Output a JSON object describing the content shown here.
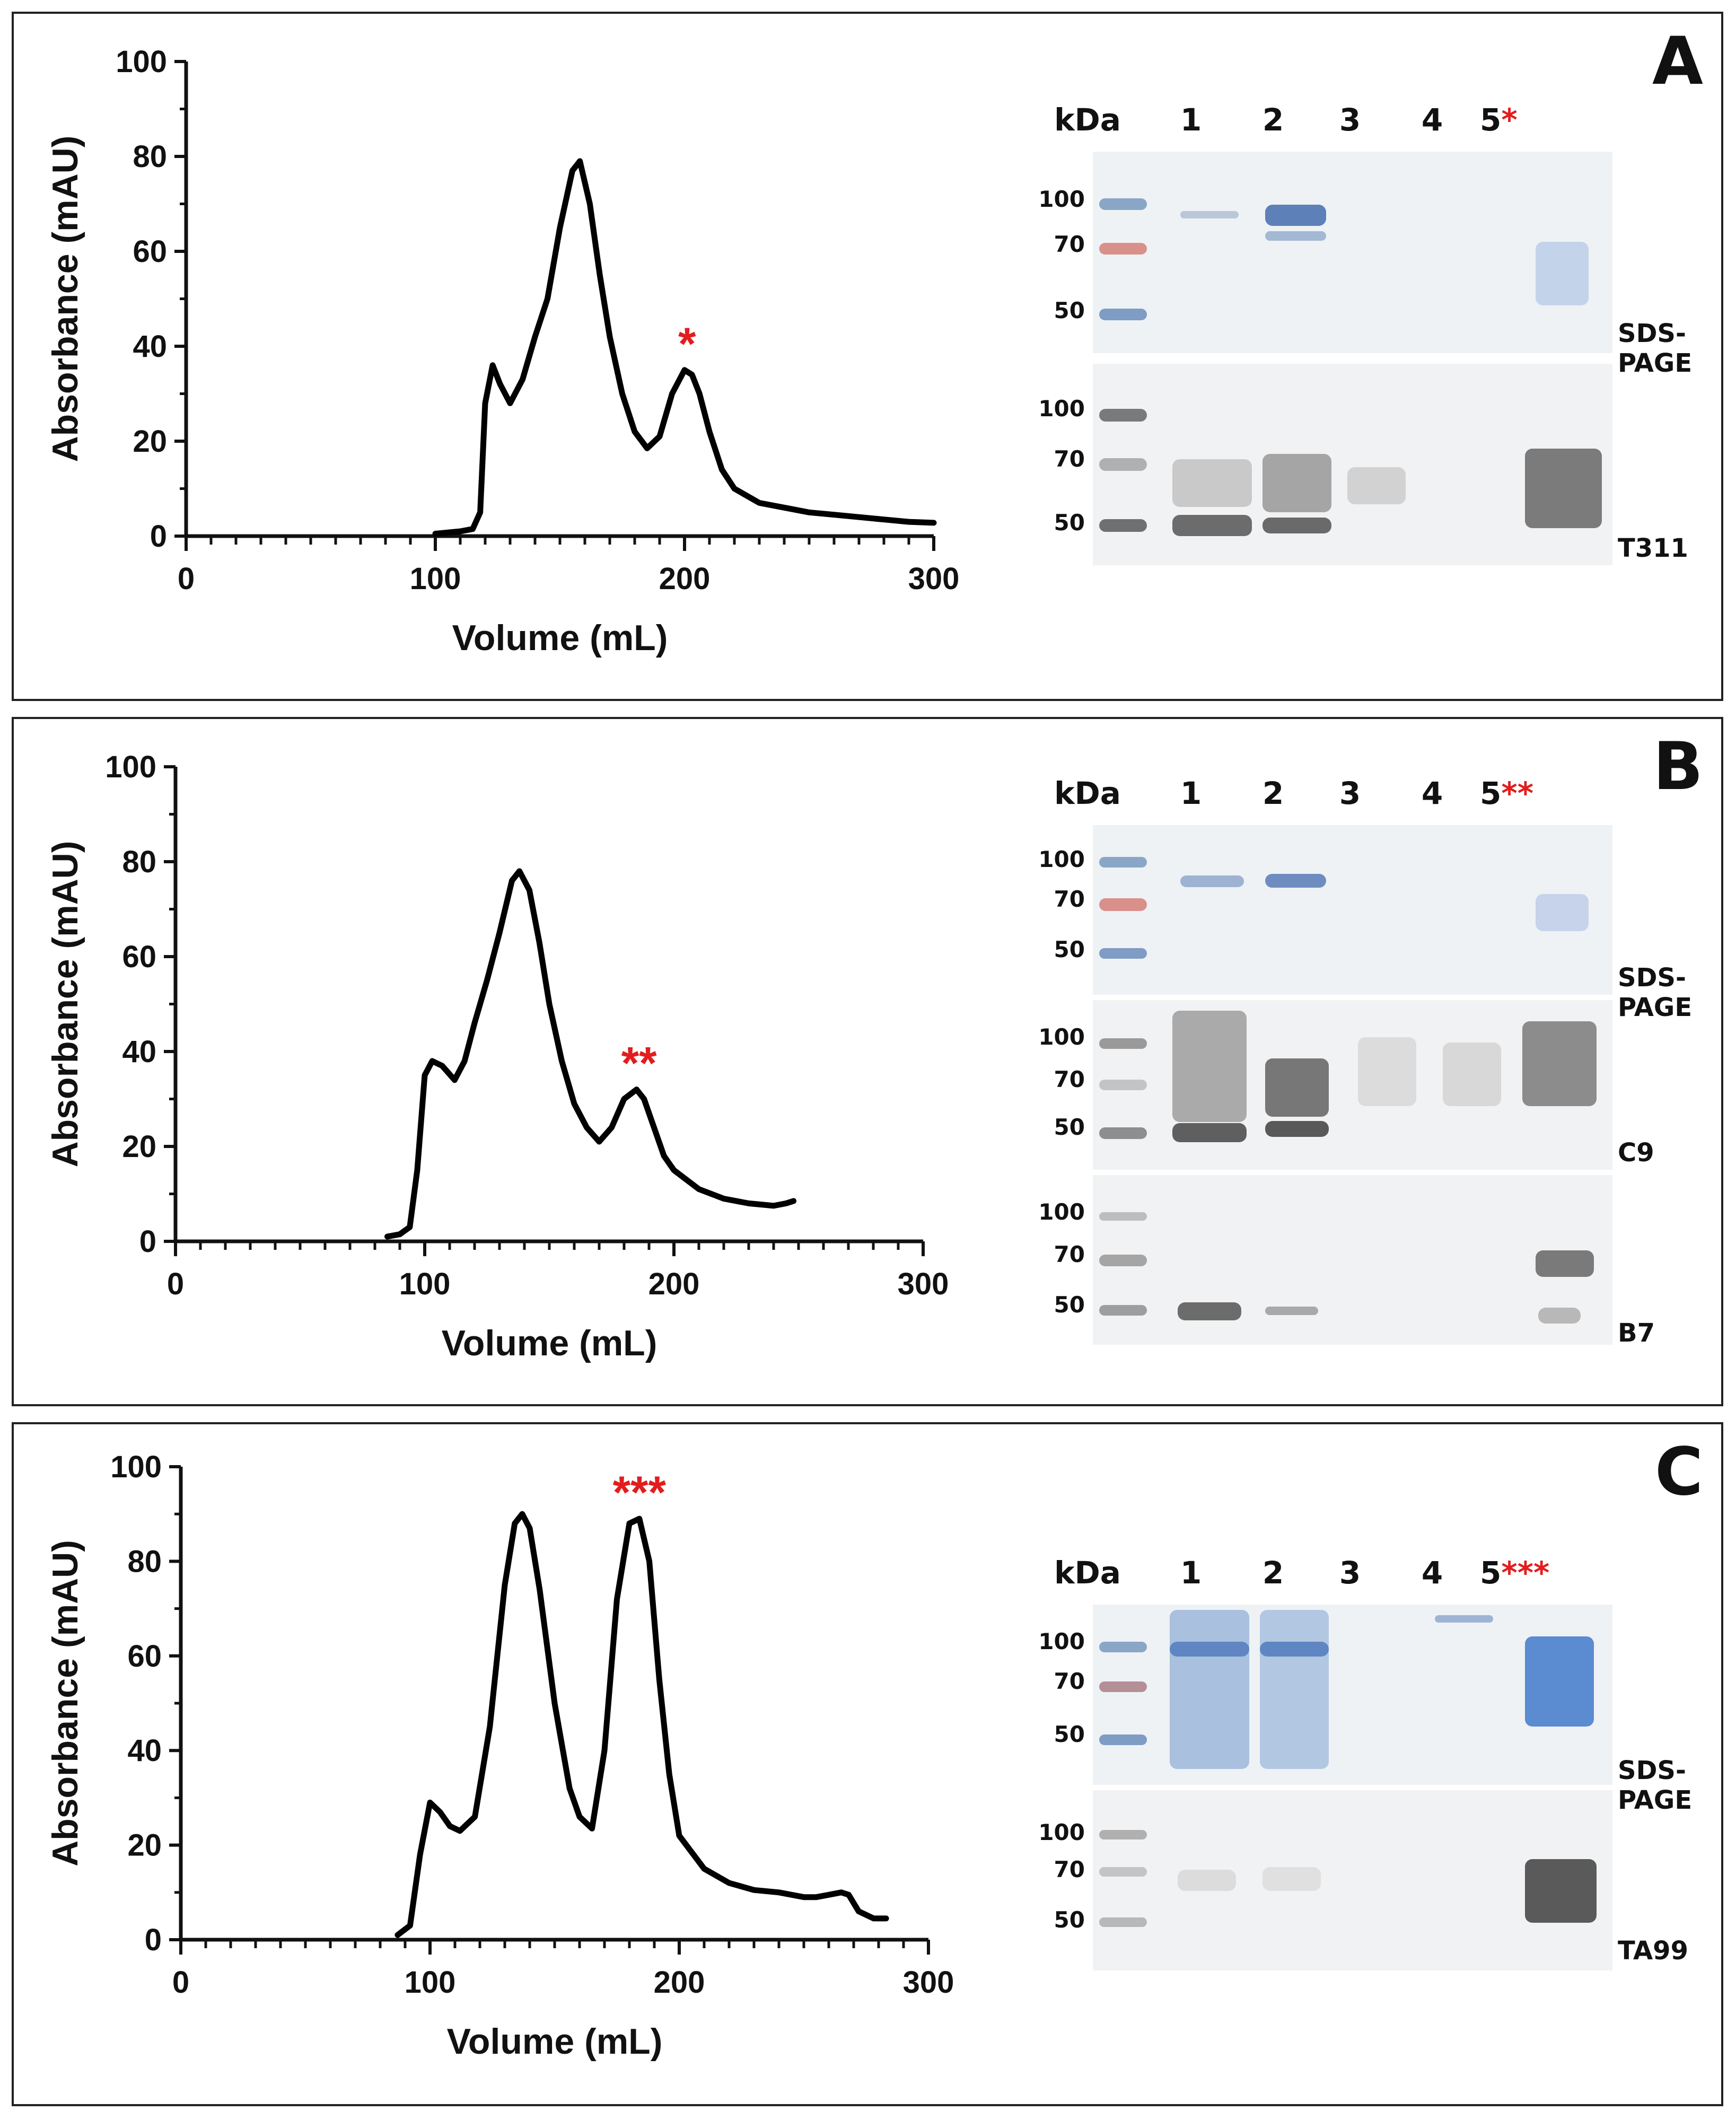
{
  "panels": [
    {
      "letter": "A",
      "chart_data": {
        "type": "line",
        "title": "",
        "xlabel": "Volume (mL)",
        "ylabel": "Absorbance (mAU)",
        "xlim": [
          0,
          300
        ],
        "ylim": [
          0,
          100
        ],
        "xticks": [
          "0",
          "100",
          "200",
          "300"
        ],
        "yticks": [
          "0",
          "20",
          "40",
          "60",
          "80",
          "100"
        ],
        "x": [
          100,
          110,
          115,
          118,
          120,
          123,
          126,
          130,
          135,
          140,
          145,
          150,
          155,
          158,
          162,
          166,
          170,
          175,
          180,
          185,
          190,
          195,
          200,
          203,
          206,
          210,
          215,
          220,
          230,
          240,
          250,
          260,
          270,
          280,
          290,
          300
        ],
        "y": [
          0.5,
          1,
          1.5,
          5,
          28,
          36,
          32,
          28,
          33,
          42,
          50,
          65,
          77,
          79,
          70,
          55,
          42,
          30,
          22,
          18.5,
          21,
          30,
          35,
          34,
          30,
          22,
          14,
          10,
          7,
          6,
          5,
          4.5,
          4,
          3.5,
          3,
          2.8
        ],
        "annotations": [
          {
            "text": "*",
            "x": 201,
            "y": 35
          }
        ]
      },
      "blot": {
        "kda_label": "kDa",
        "lanes": [
          "1",
          "2",
          "3",
          "4",
          "5"
        ],
        "lane5_marker": "*",
        "strips": [
          {
            "label": "SDS-PAGE",
            "markers": [
              "100",
              "70",
              "50"
            ]
          },
          {
            "label": "T311",
            "markers": [
              "100",
              "70",
              "50"
            ]
          }
        ]
      }
    },
    {
      "letter": "B",
      "chart_data": {
        "type": "line",
        "title": "",
        "xlabel": "Volume (mL)",
        "ylabel": "Absorbance (mAU)",
        "xlim": [
          0,
          300
        ],
        "ylim": [
          0,
          100
        ],
        "xticks": [
          "0",
          "100",
          "200",
          "300"
        ],
        "yticks": [
          "0",
          "20",
          "40",
          "60",
          "80",
          "100"
        ],
        "x": [
          85,
          90,
          94,
          97,
          100,
          103,
          107,
          112,
          116,
          120,
          125,
          130,
          135,
          138,
          142,
          146,
          150,
          155,
          160,
          165,
          170,
          175,
          180,
          185,
          188,
          192,
          196,
          200,
          210,
          220,
          230,
          240,
          245,
          248
        ],
        "y": [
          1,
          1.5,
          3,
          15,
          35,
          38,
          37,
          34,
          38,
          46,
          55,
          65,
          76,
          78,
          74,
          63,
          50,
          38,
          29,
          24,
          21,
          24,
          30,
          32,
          30,
          24,
          18,
          15,
          11,
          9,
          8,
          7.5,
          8,
          8.5
        ],
        "annotations": [
          {
            "text": "**",
            "x": 186,
            "y": 32
          }
        ]
      },
      "blot": {
        "kda_label": "kDa",
        "lanes": [
          "1",
          "2",
          "3",
          "4",
          "5"
        ],
        "lane5_marker": "**",
        "strips": [
          {
            "label": "SDS-PAGE",
            "markers": [
              "100",
              "70",
              "50"
            ]
          },
          {
            "label": "C9",
            "markers": [
              "100",
              "70",
              "50"
            ]
          },
          {
            "label": "B7",
            "markers": [
              "100",
              "70",
              "50"
            ]
          }
        ]
      }
    },
    {
      "letter": "C",
      "chart_data": {
        "type": "line",
        "title": "",
        "xlabel": "Volume (mL)",
        "ylabel": "Absorbance (mAU)",
        "xlim": [
          0,
          300
        ],
        "ylim": [
          0,
          100
        ],
        "xticks": [
          "0",
          "100",
          "200",
          "300"
        ],
        "yticks": [
          "0",
          "20",
          "40",
          "60",
          "80",
          "100"
        ],
        "x": [
          87,
          92,
          96,
          100,
          104,
          108,
          112,
          118,
          124,
          130,
          134,
          137,
          140,
          144,
          150,
          156,
          160,
          165,
          170,
          175,
          180,
          184,
          188,
          192,
          196,
          200,
          210,
          220,
          230,
          240,
          250,
          255,
          260,
          265,
          268,
          272,
          278,
          283
        ],
        "y": [
          1,
          3,
          18,
          29,
          27,
          24,
          23,
          26,
          45,
          75,
          88,
          90,
          87,
          74,
          50,
          32,
          26,
          23.5,
          40,
          72,
          88,
          89,
          80,
          55,
          35,
          22,
          15,
          12,
          10.5,
          10,
          9,
          9,
          9.5,
          10,
          9.5,
          6,
          4.5,
          4.5
        ],
        "annotations": [
          {
            "text": "***",
            "x": 184,
            "y": 89
          }
        ]
      },
      "blot": {
        "kda_label": "kDa",
        "lanes": [
          "1",
          "2",
          "3",
          "4",
          "5"
        ],
        "lane5_marker": "***",
        "strips": [
          {
            "label": "SDS-PAGE",
            "markers": [
              "100",
              "70",
              "50"
            ]
          },
          {
            "label": "TA99",
            "markers": [
              "100",
              "70",
              "50"
            ]
          }
        ]
      }
    }
  ]
}
